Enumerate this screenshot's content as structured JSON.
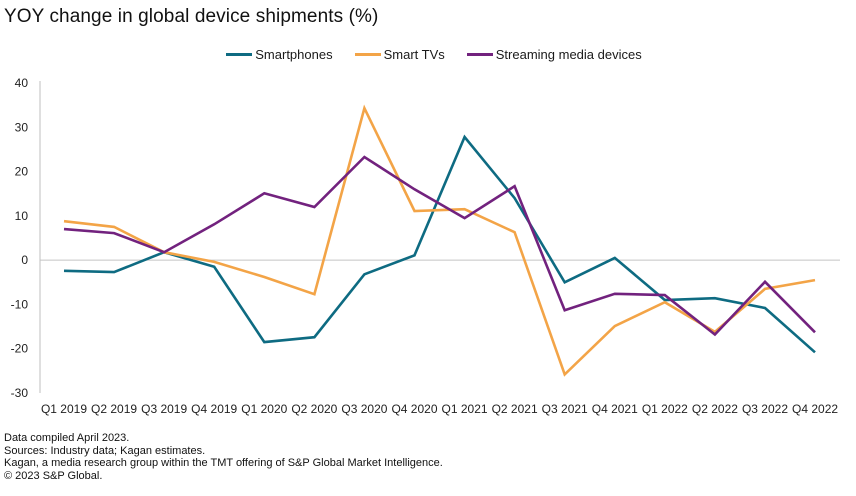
{
  "chart_data": {
    "type": "line",
    "title": "YOY change in global device shipments (%)",
    "xlabel": "",
    "ylabel": "",
    "ylim": [
      -30,
      40
    ],
    "yticks": [
      40,
      30,
      20,
      10,
      0,
      -10,
      -20,
      -30
    ],
    "grid": false,
    "legend_position": "top-center",
    "categories": [
      "Q1 2019",
      "Q2 2019",
      "Q3 2019",
      "Q4 2019",
      "Q1 2020",
      "Q2 2020",
      "Q3 2020",
      "Q4 2020",
      "Q1 2021",
      "Q2 2021",
      "Q3 2021",
      "Q4 2021",
      "Q1 2022",
      "Q2 2022",
      "Q3 2022",
      "Q4 2022"
    ],
    "series": [
      {
        "name": "Smartphones",
        "color": "#0e6b82",
        "values": [
          -2.4,
          -2.7,
          1.8,
          -1.5,
          -18.5,
          -17.4,
          -3.2,
          1.1,
          27.8,
          14.0,
          -5.0,
          0.5,
          -9.0,
          -8.6,
          -10.8,
          -20.8
        ]
      },
      {
        "name": "Smart TVs",
        "color": "#f3a447",
        "values": [
          8.8,
          7.5,
          1.8,
          -0.4,
          -3.8,
          -7.7,
          34.3,
          11.1,
          11.5,
          6.3,
          -25.8,
          -14.9,
          -9.5,
          -16.2,
          -6.5,
          -4.5
        ]
      },
      {
        "name": "Streaming media devices",
        "color": "#72227e",
        "values": [
          7.0,
          6.1,
          1.8,
          8.1,
          15.1,
          12.0,
          23.3,
          16.0,
          9.5,
          16.7,
          -11.3,
          -7.6,
          -7.9,
          -16.8,
          -4.9,
          -16.3
        ]
      }
    ]
  },
  "footer": {
    "lines": [
      "Data compiled April 2023.",
      "Sources: Industry data; Kagan estimates.",
      "Kagan, a media research group within the TMT offering of S&P Global Market Intelligence.",
      "© 2023 S&P Global."
    ]
  }
}
